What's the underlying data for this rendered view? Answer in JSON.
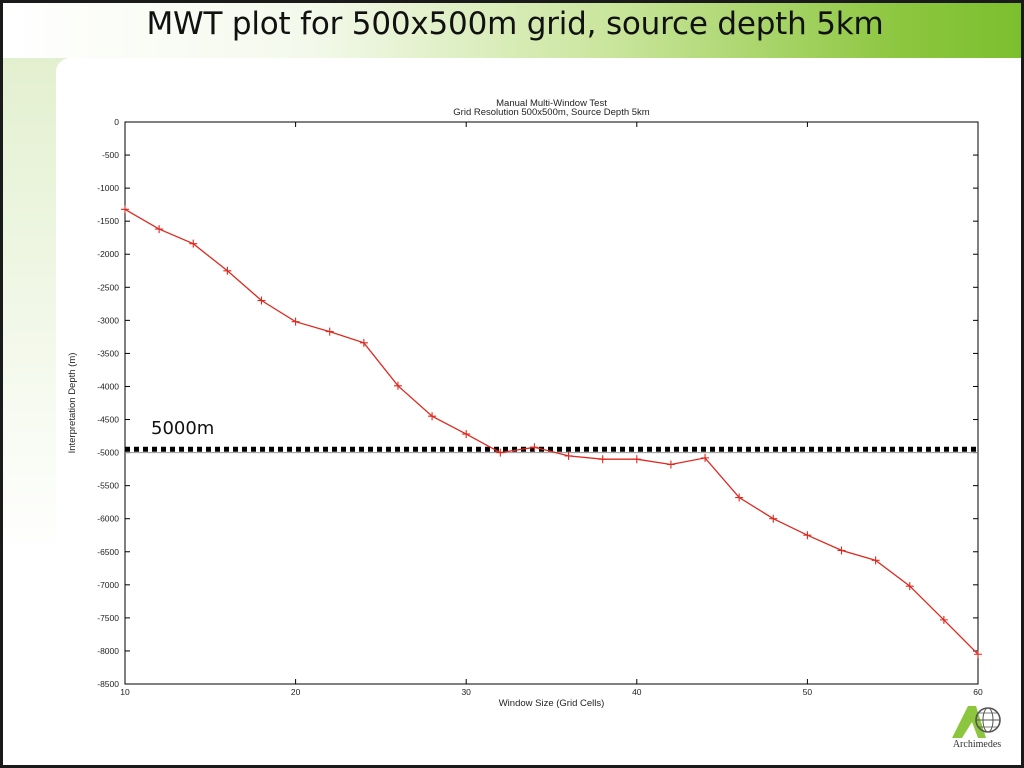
{
  "slide": {
    "title": "MWT plot for 500x500m grid, source depth 5km",
    "annotation": "5000m",
    "logo_text": "Archimedes",
    "accent_color": "#7bbf2e"
  },
  "chart_data": {
    "type": "line",
    "title": "Manual Multi-Window Test",
    "subtitle": "Grid Resolution 500x500m, Source Depth 5km",
    "xlabel": "Window Size (Grid Cells)",
    "ylabel": "Interpretation Depth (m)",
    "xlim": [
      10,
      60
    ],
    "ylim": [
      -8500,
      0
    ],
    "xticks": [
      10,
      20,
      30,
      40,
      50,
      60
    ],
    "yticks": [
      0,
      -500,
      -1000,
      -1500,
      -2000,
      -2500,
      -3000,
      -3500,
      -4000,
      -4500,
      -5000,
      -5500,
      -6000,
      -6500,
      -7000,
      -7500,
      -8000,
      -8500
    ],
    "grid": false,
    "series": [
      {
        "color": "#e0281e",
        "marker": "plus",
        "x": [
          10,
          12,
          14,
          16,
          18,
          20,
          22,
          24,
          26,
          28,
          30,
          32,
          34,
          36,
          38,
          40,
          42,
          44,
          46,
          48,
          50,
          52,
          54,
          56,
          58,
          60
        ],
        "y": [
          -1320,
          -1620,
          -1840,
          -2250,
          -2700,
          -3020,
          -3170,
          -3340,
          -3990,
          -4450,
          -4720,
          -5000,
          -4920,
          -5050,
          -5100,
          -5100,
          -5180,
          -5080,
          -5680,
          -6000,
          -6250,
          -6480,
          -6630,
          -7020,
          -7530,
          -8050
        ]
      }
    ],
    "reference_line": {
      "y": -4950,
      "style": "dotted",
      "color": "#000000"
    },
    "secondary_line": {
      "y": -5000,
      "style": "thin",
      "color": "#999999"
    }
  }
}
